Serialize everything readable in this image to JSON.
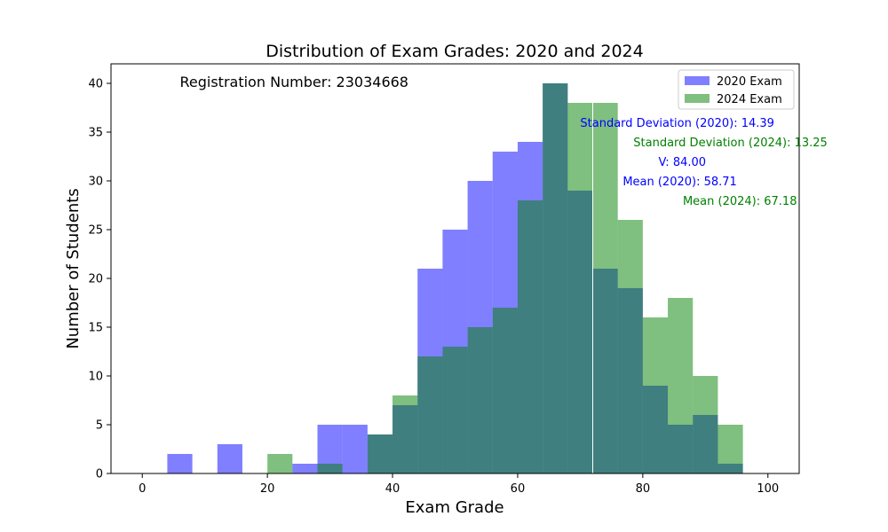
{
  "chart_data": {
    "type": "bar",
    "title": "Distribution of Exam Grades: 2020 and 2024",
    "xlabel": "Exam Grade",
    "ylabel": "Number of Students",
    "xlim": [
      -5,
      105
    ],
    "ylim": [
      0,
      42
    ],
    "xticks": [
      0,
      20,
      40,
      60,
      80,
      100
    ],
    "yticks": [
      0,
      5,
      10,
      15,
      20,
      25,
      30,
      35,
      40
    ],
    "bin_edges": [
      0,
      4,
      8,
      12,
      16,
      20,
      24,
      28,
      32,
      36,
      40,
      44,
      48,
      52,
      56,
      60,
      64,
      68,
      72,
      76,
      80,
      84,
      88,
      92,
      96
    ],
    "series": [
      {
        "name": "2020 Exam",
        "color": "#0000ff",
        "alpha": 0.5,
        "values": [
          0,
          2,
          0,
          3,
          0,
          0,
          1,
          5,
          5,
          4,
          7,
          21,
          25,
          30,
          33,
          34,
          40,
          29,
          21,
          19,
          9,
          5,
          6,
          1
        ]
      },
      {
        "name": "2024 Exam",
        "color": "#008000",
        "alpha": 0.5,
        "values": [
          0,
          0,
          0,
          0,
          0,
          2,
          0,
          1,
          0,
          4,
          8,
          12,
          13,
          15,
          17,
          28,
          40,
          38,
          38,
          26,
          16,
          18,
          10,
          5
        ]
      }
    ],
    "vline_x": 72,
    "legend_position": "upper right",
    "annotations": [
      {
        "text": "Registration Number: 23034668",
        "x": 6,
        "y": 40,
        "color": "#000000",
        "style": "large"
      },
      {
        "text": "Standard Deviation (2020): 14.39",
        "x": 70,
        "y": 36,
        "color": "#0000ff"
      },
      {
        "text": "Standard Deviation (2024): 13.25",
        "x": 78.5,
        "y": 34,
        "color": "#008000"
      },
      {
        "text": "V: 84.00",
        "x": 82.5,
        "y": 32,
        "color": "#0000ff"
      },
      {
        "text": "Mean (2020): 58.71",
        "x": 76.8,
        "y": 30,
        "color": "#0000ff"
      },
      {
        "text": "Mean (2024): 67.18",
        "x": 86.4,
        "y": 28,
        "color": "#008000"
      }
    ]
  }
}
